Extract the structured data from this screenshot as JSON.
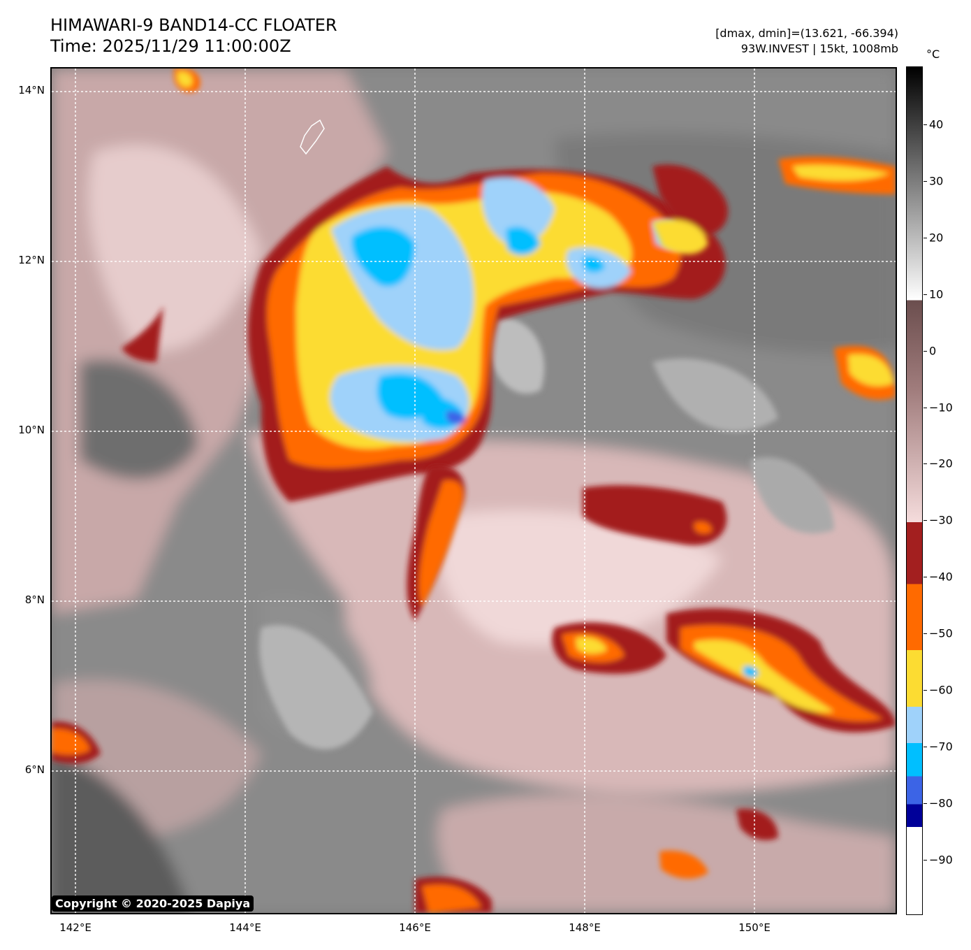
{
  "header": {
    "title": "HIMAWARI-9 BAND14-CC FLOATER",
    "time": "Time: 2025/11/29 11:00:00Z",
    "range": "[dmax, dmin]=(13.621, -66.394)",
    "storm": "93W.INVEST | 15kt, 1008mb"
  },
  "map": {
    "lat_labels": [
      "14°N",
      "12°N",
      "10°N",
      "8°N",
      "6°N"
    ],
    "lon_labels": [
      "142°E",
      "144°E",
      "146°E",
      "148°E",
      "150°E"
    ],
    "copyright": "Copyright © 2020-2025 Dapiya"
  },
  "colorbar": {
    "unit": "°C",
    "ticks": [
      "40",
      "30",
      "20",
      "10",
      "0",
      "−10",
      "−20",
      "−30",
      "−40",
      "−50",
      "−60",
      "−70",
      "−80",
      "−90"
    ],
    "colors": {
      "band_mm90": "#ffffff",
      "band_m85": "#000099",
      "band_m80": "#3c64e6",
      "band_m70": "#00bfff",
      "band_m65": "#9fd2fa",
      "band_m60": "#fcdc32",
      "band_m50": "#ff6a00",
      "band_m40": "#a31f1f",
      "warm_top": "#f5dcdc",
      "warm_mid": "#a07c7c",
      "warm_low": "#6b4e4e",
      "gray_white": "#ffffff",
      "gray_black": "#000000"
    }
  }
}
